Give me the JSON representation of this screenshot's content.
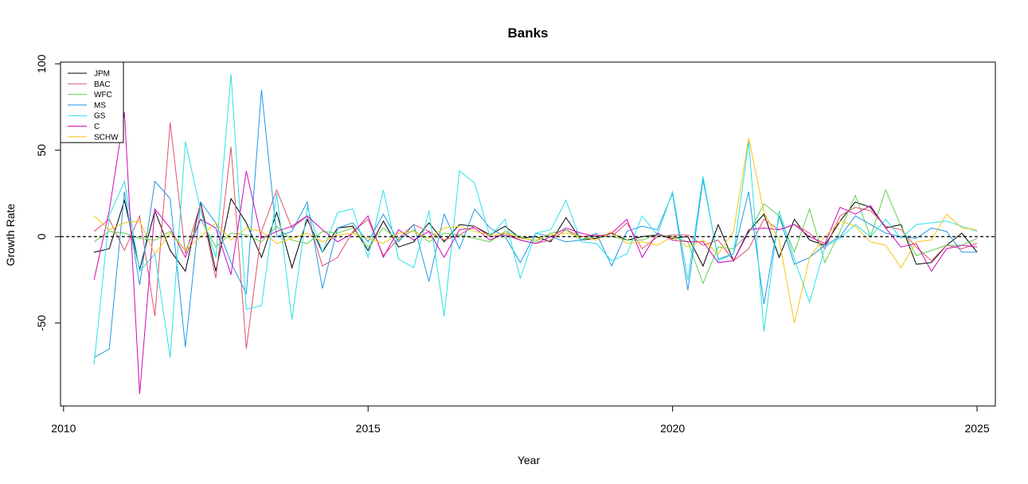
{
  "chart_data": {
    "type": "line",
    "title": "Banks",
    "xlabel": "Year",
    "ylabel": "Growth Rate",
    "xlim": [
      2009.95,
      2025.3
    ],
    "ylim": [
      -98,
      101
    ],
    "xticks": [
      2010,
      2015,
      2020,
      2025
    ],
    "yticks": [
      -50,
      0,
      50,
      100
    ],
    "reference_line": 0,
    "legend": "top-left",
    "x_start": 2010.5,
    "x_step": 0.25,
    "series": [
      {
        "name": "JPM",
        "color": "#000000",
        "values": [
          -9,
          -7,
          21,
          -19,
          15,
          -8,
          -20,
          20,
          -20,
          22,
          8,
          -12,
          14,
          -18,
          10,
          -9,
          5,
          6,
          -8,
          9,
          -6,
          -3,
          8,
          -3,
          7,
          6,
          1,
          6,
          -1,
          0,
          -3,
          11,
          -2,
          -1,
          2,
          -2,
          0,
          1,
          -1,
          0,
          -17,
          7,
          -14,
          3,
          13,
          -12,
          10,
          -2,
          -5,
          9,
          20,
          17,
          5,
          7,
          -16,
          -15,
          -5,
          2,
          -9
        ]
      },
      {
        "name": "BAC",
        "color": "#DF536B",
        "values": [
          3,
          10,
          -8,
          12,
          -46,
          66,
          -10,
          19,
          -24,
          52,
          -65,
          3,
          27,
          5,
          12,
          -17,
          -12,
          3,
          10,
          -11,
          -1,
          7,
          3,
          -2,
          1,
          6,
          0,
          1,
          -2,
          -4,
          -2,
          4,
          0,
          1,
          0,
          8,
          -7,
          0,
          1,
          1,
          -5,
          -2,
          -14,
          -7,
          10,
          4,
          7,
          2,
          -7,
          12,
          17,
          15,
          6,
          4,
          -6,
          -14,
          -5,
          -7,
          -4
        ]
      },
      {
        "name": "WFC",
        "color": "#61D04F",
        "values": [
          -3,
          3,
          2,
          -1,
          -2,
          3,
          -8,
          10,
          -6,
          2,
          1,
          -3,
          6,
          -2,
          -4,
          3,
          2,
          5,
          -6,
          5,
          -2,
          4,
          -3,
          2,
          1,
          -1,
          -3,
          3,
          0,
          -3,
          2,
          4,
          -2,
          0,
          0,
          -2,
          -2,
          1,
          0,
          -3,
          -27,
          -6,
          -7,
          2,
          19,
          12,
          -9,
          16,
          -15,
          3,
          24,
          0,
          27,
          6,
          -11,
          -8,
          -5,
          -5,
          -1
        ]
      },
      {
        "name": "MS",
        "color": "#2297E6",
        "values": [
          -70,
          -65,
          26,
          -28,
          32,
          22,
          -64,
          20,
          8,
          -15,
          -33,
          85,
          0,
          3,
          20,
          -30,
          5,
          8,
          -3,
          13,
          -3,
          7,
          -26,
          13,
          -7,
          16,
          5,
          0,
          -15,
          2,
          0,
          -3,
          -2,
          2,
          -17,
          3,
          6,
          4,
          25,
          -31,
          33,
          -13,
          -10,
          26,
          -39,
          12,
          -16,
          -12,
          -5,
          0,
          12,
          7,
          2,
          0,
          -1,
          5,
          3,
          -9,
          -9
        ]
      },
      {
        "name": "GS",
        "color": "#28E2E5",
        "values": [
          -74,
          12,
          32,
          -20,
          -10,
          -70,
          55,
          15,
          -12,
          94,
          -42,
          -40,
          25,
          -48,
          17,
          -9,
          14,
          16,
          -12,
          27,
          -13,
          -18,
          15,
          -46,
          38,
          31,
          0,
          10,
          -24,
          2,
          4,
          21,
          -3,
          -4,
          -14,
          -10,
          12,
          1,
          26,
          -25,
          35,
          -14,
          -10,
          55,
          -55,
          15,
          -13,
          -38,
          -6,
          -1,
          7,
          0,
          10,
          -1,
          7,
          8,
          9,
          6,
          3
        ]
      },
      {
        "name": "C",
        "color": "#CD0BBC",
        "values": [
          -25,
          15,
          72,
          -91,
          16,
          5,
          -12,
          10,
          5,
          -22,
          38,
          -1,
          3,
          6,
          12,
          4,
          -3,
          2,
          12,
          -12,
          4,
          -2,
          3,
          -12,
          4,
          5,
          -2,
          2,
          -2,
          -4,
          0,
          5,
          2,
          0,
          2,
          10,
          -12,
          2,
          -2,
          -3,
          -3,
          -15,
          -14,
          4,
          5,
          4,
          7,
          0,
          -4,
          17,
          13,
          18,
          5,
          -6,
          -4,
          -20,
          -7,
          -5,
          -6
        ]
      },
      {
        "name": "SCHW",
        "color": "#F5C710",
        "values": [
          12,
          4,
          8,
          9,
          -10,
          2,
          -8,
          0,
          8,
          -2,
          5,
          3,
          -4,
          -1,
          2,
          -3,
          1,
          2,
          -1,
          -4,
          2,
          3,
          -1,
          5,
          6,
          3,
          1,
          2,
          -1,
          -2,
          1,
          2,
          0,
          -2,
          3,
          -4,
          -3,
          -5,
          0,
          -6,
          -2,
          -10,
          3,
          57,
          14,
          -2,
          -50,
          -12,
          0,
          9,
          6,
          -3,
          -5,
          -18,
          -3,
          -2,
          13,
          5,
          4
        ]
      }
    ]
  }
}
